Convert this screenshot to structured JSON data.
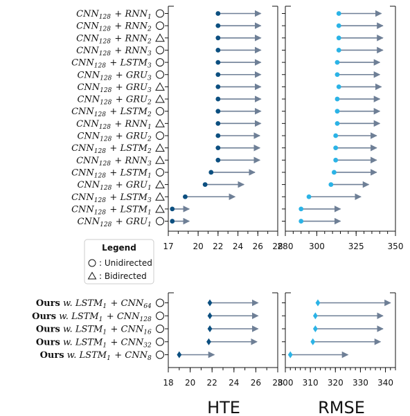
{
  "chart_data": [
    {
      "type": "dumbbell",
      "panel": "top",
      "rows": [
        {
          "label": "CNN128 + RNN1",
          "marker": "circle"
        },
        {
          "label": "CNN128 + RNN2",
          "marker": "circle"
        },
        {
          "label": "CNN128 + RNN2",
          "marker": "triangle"
        },
        {
          "label": "CNN128 + RNN3",
          "marker": "circle"
        },
        {
          "label": "CNN128 + LSTM3",
          "marker": "circle"
        },
        {
          "label": "CNN128 + GRU3",
          "marker": "circle"
        },
        {
          "label": "CNN128 + GRU3",
          "marker": "triangle"
        },
        {
          "label": "CNN128 + GRU2",
          "marker": "triangle"
        },
        {
          "label": "CNN128 + LSTM2",
          "marker": "circle"
        },
        {
          "label": "CNN128 + RNN1",
          "marker": "triangle"
        },
        {
          "label": "CNN128 + GRU2",
          "marker": "circle"
        },
        {
          "label": "CNN128 + LSTM2",
          "marker": "triangle"
        },
        {
          "label": "CNN128 + RNN3",
          "marker": "triangle"
        },
        {
          "label": "CNN128 + LSTM1",
          "marker": "circle"
        },
        {
          "label": "CNN128 + GRU1",
          "marker": "triangle"
        },
        {
          "label": "CNN128 + LSTM3",
          "marker": "triangle"
        },
        {
          "label": "CNN128 + LSTM1",
          "marker": "triangle"
        },
        {
          "label": "CNN128 + GRU1",
          "marker": "circle"
        }
      ],
      "hte": {
        "xlabel": "HTE",
        "xlim": [
          17,
          28
        ],
        "ticks": [
          17,
          20,
          22,
          24,
          26,
          28
        ],
        "start": [
          22.0,
          22.0,
          22.0,
          22.0,
          22.0,
          22.0,
          22.0,
          22.0,
          22.0,
          22.0,
          22.0,
          22.0,
          22.0,
          21.3,
          20.7,
          18.7,
          17.4,
          17.4
        ],
        "end": [
          26.3,
          26.3,
          26.3,
          26.3,
          26.3,
          26.3,
          26.3,
          26.3,
          26.3,
          26.3,
          26.2,
          26.2,
          26.2,
          25.7,
          24.6,
          23.7,
          19.1,
          19.1
        ]
      },
      "rmse": {
        "xlabel": "RMSE",
        "xlim": [
          280,
          350
        ],
        "ticks": [
          280,
          300,
          325,
          350
        ],
        "start": [
          314,
          314,
          314,
          314,
          313,
          313,
          314,
          313,
          313,
          313,
          312,
          312,
          312,
          311,
          309,
          295,
          290,
          290
        ],
        "end": [
          341,
          342,
          342,
          342,
          340,
          340,
          341,
          340,
          340,
          340,
          338,
          338,
          338,
          338,
          333,
          328,
          315,
          315
        ]
      }
    },
    {
      "type": "dumbbell",
      "panel": "bottom",
      "rows": [
        {
          "prefix": "Ours",
          "label": " w. LSTM1 + CNN64",
          "marker": "circle"
        },
        {
          "prefix": "Ours",
          "label": " w. LSTM1 + CNN128",
          "marker": "circle"
        },
        {
          "prefix": "Ours",
          "label": " w. LSTM1 + CNN16",
          "marker": "circle"
        },
        {
          "prefix": "Ours",
          "label": " w. LSTM1 + CNN32",
          "marker": "circle"
        },
        {
          "prefix": "Ours",
          "label": " w. LSTM1 + CNN8",
          "marker": "circle"
        }
      ],
      "hte": {
        "xlabel": "HTE",
        "xlim": [
          18,
          28
        ],
        "ticks": [
          18,
          20,
          22,
          24,
          26,
          28
        ],
        "start": [
          21.8,
          21.8,
          21.8,
          21.7,
          19.0
        ],
        "end": [
          26.2,
          26.2,
          26.2,
          26.1,
          22.2
        ]
      },
      "rmse": {
        "xlabel": "RMSE",
        "xlim": [
          300,
          344
        ],
        "ticks": [
          300,
          310,
          320,
          330,
          340
        ],
        "start": [
          313,
          312,
          312,
          311,
          302
        ],
        "end": [
          342,
          339,
          339,
          338,
          325
        ]
      }
    }
  ],
  "legend": {
    "title": "Legend",
    "entries": [
      {
        "marker": "circle",
        "text": ": Unidirected"
      },
      {
        "marker": "triangle",
        "text": ": Bidirected"
      }
    ]
  },
  "x_titles": [
    "HTE",
    "RMSE"
  ],
  "colors": {
    "hte_dot": "#0c4f80",
    "rmse_dot": "#2bb3e6",
    "arrow": "#6e7f96",
    "axis": "#111111"
  }
}
